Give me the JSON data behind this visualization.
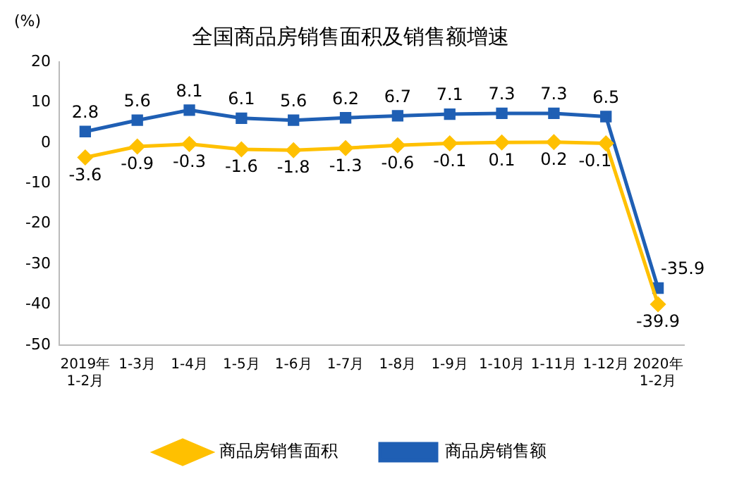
{
  "chart_data": {
    "type": "line",
    "title": "全国商品房销售面积及销售额增速",
    "ylabel": "(%)",
    "categories": [
      "2019年\n1-2月",
      "1-3月",
      "1-4月",
      "1-5月",
      "1-6月",
      "1-7月",
      "1-8月",
      "1-9月",
      "1-10月",
      "1-11月",
      "1-12月",
      "2020年\n1-2月"
    ],
    "series": [
      {
        "name": "商品房销售面积",
        "color": "#ffc000",
        "marker": "diamond",
        "values": [
          -3.6,
          -0.9,
          -0.3,
          -1.6,
          -1.8,
          -1.3,
          -0.6,
          -0.1,
          0.1,
          0.2,
          -0.1,
          -39.9
        ]
      },
      {
        "name": "商品房销售额",
        "color": "#1f5fb4",
        "marker": "square",
        "values": [
          2.8,
          5.6,
          8.1,
          6.1,
          5.6,
          6.2,
          6.7,
          7.1,
          7.3,
          7.3,
          6.5,
          -35.9
        ]
      }
    ],
    "ylim": [
      -50,
      20
    ],
    "yticks": [
      -50,
      -40,
      -30,
      -20,
      -10,
      0,
      10,
      20
    ],
    "grid": false,
    "legend": "bottom",
    "data_labels": true
  }
}
